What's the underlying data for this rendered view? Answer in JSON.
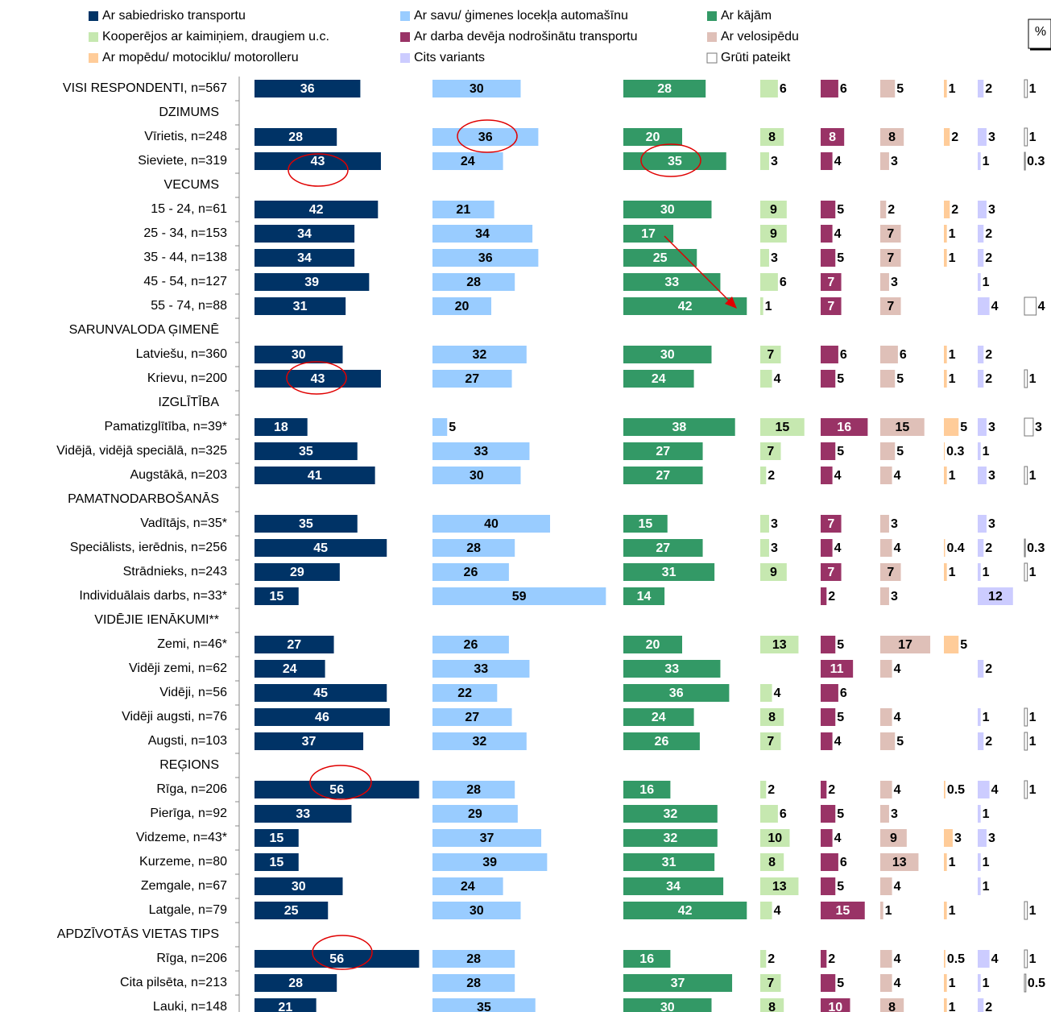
{
  "chart_data": {
    "type": "bar",
    "unit_label": "%",
    "categories": [
      "VISI RESPONDENTI, n=567",
      "DZIMUMS",
      "Vīrietis, n=248",
      "Sieviete, n=319",
      "VECUMS",
      "15 - 24, n=61",
      "25 - 34, n=153",
      "35 - 44, n=138",
      "45 - 54, n=127",
      "55 - 74, n=88",
      "SARUNVALODA ĢIMENĒ",
      "Latviešu, n=360",
      "Krievu, n=200",
      "IZGLĪTĪBA",
      "Pamatizglītība, n=39*",
      "Vidējā, vidējā speciālā, n=325",
      "Augstākā, n=203",
      "PAMATNODARBOŠANĀS",
      "Vadītājs, n=35*",
      "Speciālists, ierēdnis, n=256",
      "Strādnieks, n=243",
      "Individuālais darbs, n=33*",
      "VIDĒJIE IENĀKUMI**",
      "Zemi, n=46*",
      "Vidēji zemi, n=62",
      "Vidēji, n=56",
      "Vidēji augsti, n=76",
      "Augsti, n=103",
      "REĢIONS",
      "Rīga, n=206",
      "Pierīga, n=92",
      "Vidzeme, n=43*",
      "Kurzeme, n=80",
      "Zemgale, n=67",
      "Latgale, n=79",
      "APDZĪVOTĀS VIETAS TIPS",
      "Rīga, n=206",
      "Cita pilsēta, n=213",
      "Lauki, n=148"
    ],
    "series": [
      {
        "name": "Ar sabiedrisko transportu",
        "color": "#003366",
        "values": [
          36,
          null,
          28,
          43,
          null,
          42,
          34,
          34,
          39,
          31,
          null,
          30,
          43,
          null,
          18,
          35,
          41,
          null,
          35,
          45,
          29,
          15,
          null,
          27,
          24,
          45,
          46,
          37,
          null,
          56,
          33,
          15,
          15,
          30,
          25,
          null,
          56,
          28,
          21
        ]
      },
      {
        "name": "Ar savu/ ģimenes locekļa automašīnu",
        "color": "#99ccff",
        "values": [
          30,
          null,
          36,
          24,
          null,
          21,
          34,
          36,
          28,
          20,
          null,
          32,
          27,
          null,
          5,
          33,
          30,
          null,
          40,
          28,
          26,
          59,
          null,
          26,
          33,
          22,
          27,
          32,
          null,
          28,
          29,
          37,
          39,
          24,
          30,
          null,
          28,
          28,
          35
        ]
      },
      {
        "name": "Ar kājām",
        "color": "#339966",
        "values": [
          28,
          null,
          20,
          35,
          null,
          30,
          17,
          25,
          33,
          42,
          null,
          30,
          24,
          null,
          38,
          27,
          27,
          null,
          15,
          27,
          31,
          14,
          null,
          20,
          33,
          36,
          24,
          26,
          null,
          16,
          32,
          32,
          31,
          34,
          42,
          null,
          16,
          37,
          30
        ]
      },
      {
        "name": "Kooperējos ar kaimiņiem, draugiem u.c.",
        "color": "#c6e8b0",
        "values": [
          6,
          null,
          8,
          3,
          null,
          9,
          9,
          3,
          6,
          1,
          null,
          7,
          4,
          null,
          15,
          7,
          2,
          null,
          3,
          3,
          9,
          null,
          null,
          13,
          null,
          4,
          8,
          7,
          null,
          2,
          6,
          10,
          8,
          13,
          4,
          null,
          2,
          7,
          8
        ]
      },
      {
        "name": "Ar darba devēja nodrošinātu transportu",
        "color": "#993366",
        "values": [
          6,
          null,
          8,
          4,
          null,
          5,
          4,
          5,
          7,
          7,
          null,
          6,
          5,
          null,
          16,
          5,
          4,
          null,
          7,
          4,
          7,
          2,
          null,
          5,
          11,
          6,
          5,
          4,
          null,
          2,
          5,
          4,
          6,
          5,
          15,
          null,
          2,
          5,
          10
        ]
      },
      {
        "name": "Ar velosipēdu",
        "color": "#dfc0b8",
        "values": [
          5,
          null,
          8,
          3,
          null,
          2,
          7,
          7,
          3,
          7,
          null,
          6,
          5,
          null,
          15,
          5,
          4,
          null,
          3,
          4,
          7,
          3,
          null,
          17,
          4,
          null,
          4,
          5,
          null,
          4,
          3,
          9,
          13,
          4,
          1,
          null,
          4,
          4,
          8
        ]
      },
      {
        "name": "Ar mopēdu/ motociklu/ motorolleru",
        "color": "#ffcc99",
        "values": [
          1,
          null,
          2,
          null,
          null,
          2,
          1,
          1,
          null,
          null,
          null,
          1,
          1,
          null,
          5,
          0.3,
          1,
          null,
          null,
          0.4,
          1,
          null,
          null,
          5,
          null,
          null,
          null,
          null,
          null,
          0.5,
          null,
          3,
          1,
          null,
          1,
          null,
          0.5,
          1,
          1
        ]
      },
      {
        "name": "Cits variants",
        "color": "#ccccff",
        "values": [
          2,
          null,
          3,
          1,
          null,
          3,
          2,
          2,
          1,
          4,
          null,
          2,
          2,
          null,
          3,
          1,
          3,
          null,
          3,
          2,
          1,
          12,
          null,
          null,
          2,
          null,
          1,
          2,
          null,
          4,
          1,
          3,
          1,
          1,
          null,
          null,
          4,
          1,
          2
        ]
      },
      {
        "name": "Grūti pateikt",
        "color": "#ffffff",
        "values": [
          1,
          null,
          1,
          0.3,
          null,
          null,
          null,
          null,
          null,
          4,
          null,
          null,
          1,
          null,
          3,
          null,
          1,
          null,
          null,
          0.3,
          1,
          null,
          null,
          null,
          null,
          null,
          1,
          1,
          null,
          1,
          null,
          null,
          null,
          null,
          1,
          null,
          1,
          0.5,
          null
        ]
      }
    ]
  }
}
